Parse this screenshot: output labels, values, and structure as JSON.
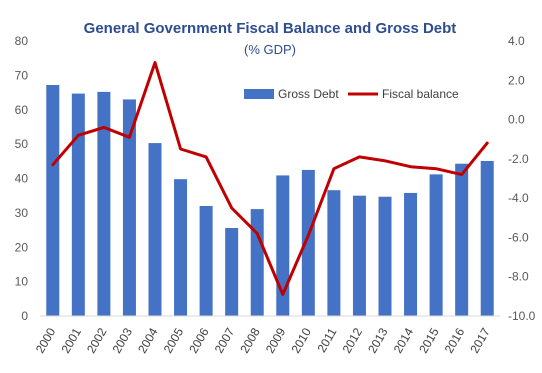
{
  "chart_data": {
    "type": "bar",
    "title": "General Government Fiscal Balance and Gross Debt",
    "subtitle": "(% GDP)",
    "categories": [
      "2000",
      "2001",
      "2002",
      "2003",
      "2004",
      "2005",
      "2006",
      "2007",
      "2008",
      "2009",
      "2010",
      "2011",
      "2012",
      "2013",
      "2014",
      "2015",
      "2016",
      "2017"
    ],
    "series": [
      {
        "name": "Gross Debt",
        "type": "bar",
        "axis": "left",
        "color": "#4472C4",
        "values": [
          67.2,
          64.7,
          65.2,
          63.0,
          50.3,
          39.8,
          32.0,
          25.6,
          31.1,
          40.9,
          42.5,
          36.6,
          35.0,
          34.7,
          35.8,
          41.2,
          44.3,
          45.1
        ]
      },
      {
        "name": "Fiscal balance",
        "type": "line",
        "axis": "right",
        "color": "#C00000",
        "values": [
          -2.3,
          -0.8,
          -0.4,
          -0.9,
          2.9,
          -1.5,
          -1.9,
          -4.5,
          -5.8,
          -8.9,
          -5.9,
          -2.5,
          -1.9,
          -2.1,
          -2.4,
          -2.5,
          -2.8,
          -1.2
        ]
      }
    ],
    "y_left": {
      "ylim": [
        0,
        80
      ],
      "ticks": [
        "0",
        "10",
        "20",
        "30",
        "40",
        "50",
        "60",
        "70",
        "80"
      ]
    },
    "y_right": {
      "ylim": [
        -10,
        4
      ],
      "ticks": [
        "4.0",
        "2.0",
        "0.0",
        "-2.0",
        "-4.0",
        "-6.0",
        "-8.0",
        "-10.0"
      ]
    },
    "legend": {
      "placement": "top-right",
      "labels": [
        "Gross Debt",
        "Fiscal balance"
      ]
    },
    "grid": false
  }
}
